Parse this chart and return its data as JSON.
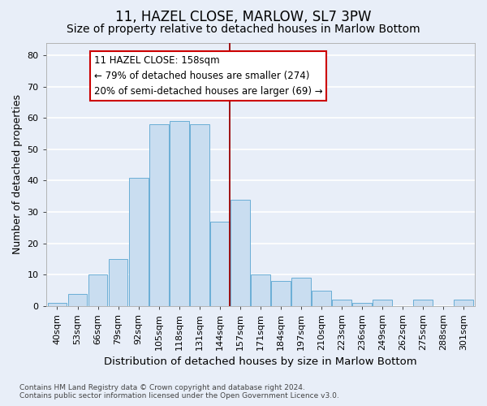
{
  "title": "11, HAZEL CLOSE, MARLOW, SL7 3PW",
  "subtitle": "Size of property relative to detached houses in Marlow Bottom",
  "xlabel": "Distribution of detached houses by size in Marlow Bottom",
  "ylabel": "Number of detached properties",
  "categories": [
    "40sqm",
    "53sqm",
    "66sqm",
    "79sqm",
    "92sqm",
    "105sqm",
    "118sqm",
    "131sqm",
    "144sqm",
    "157sqm",
    "171sqm",
    "184sqm",
    "197sqm",
    "210sqm",
    "223sqm",
    "236sqm",
    "249sqm",
    "262sqm",
    "275sqm",
    "288sqm",
    "301sqm"
  ],
  "bar_values": [
    1,
    4,
    10,
    15,
    41,
    58,
    59,
    58,
    27,
    34,
    10,
    8,
    9,
    5,
    2,
    1,
    2,
    0,
    2,
    0,
    2
  ],
  "bar_color": "#c9ddf0",
  "bar_edge_color": "#6aaed6",
  "vline_index": 9,
  "vline_color": "#990000",
  "annotation_text": "11 HAZEL CLOSE: 158sqm\n← 79% of detached houses are smaller (274)\n20% of semi-detached houses are larger (69) →",
  "annotation_box_facecolor": "#ffffff",
  "annotation_box_edgecolor": "#cc0000",
  "ylim": [
    0,
    84
  ],
  "yticks": [
    0,
    10,
    20,
    30,
    40,
    50,
    60,
    70,
    80
  ],
  "background_color": "#e8eef8",
  "plot_bg_color": "#e8eef8",
  "grid_color": "#ffffff",
  "footer_line1": "Contains HM Land Registry data © Crown copyright and database right 2024.",
  "footer_line2": "Contains public sector information licensed under the Open Government Licence v3.0.",
  "title_fontsize": 12,
  "subtitle_fontsize": 10,
  "xlabel_fontsize": 9.5,
  "ylabel_fontsize": 9,
  "tick_fontsize": 8,
  "annotation_fontsize": 8.5
}
